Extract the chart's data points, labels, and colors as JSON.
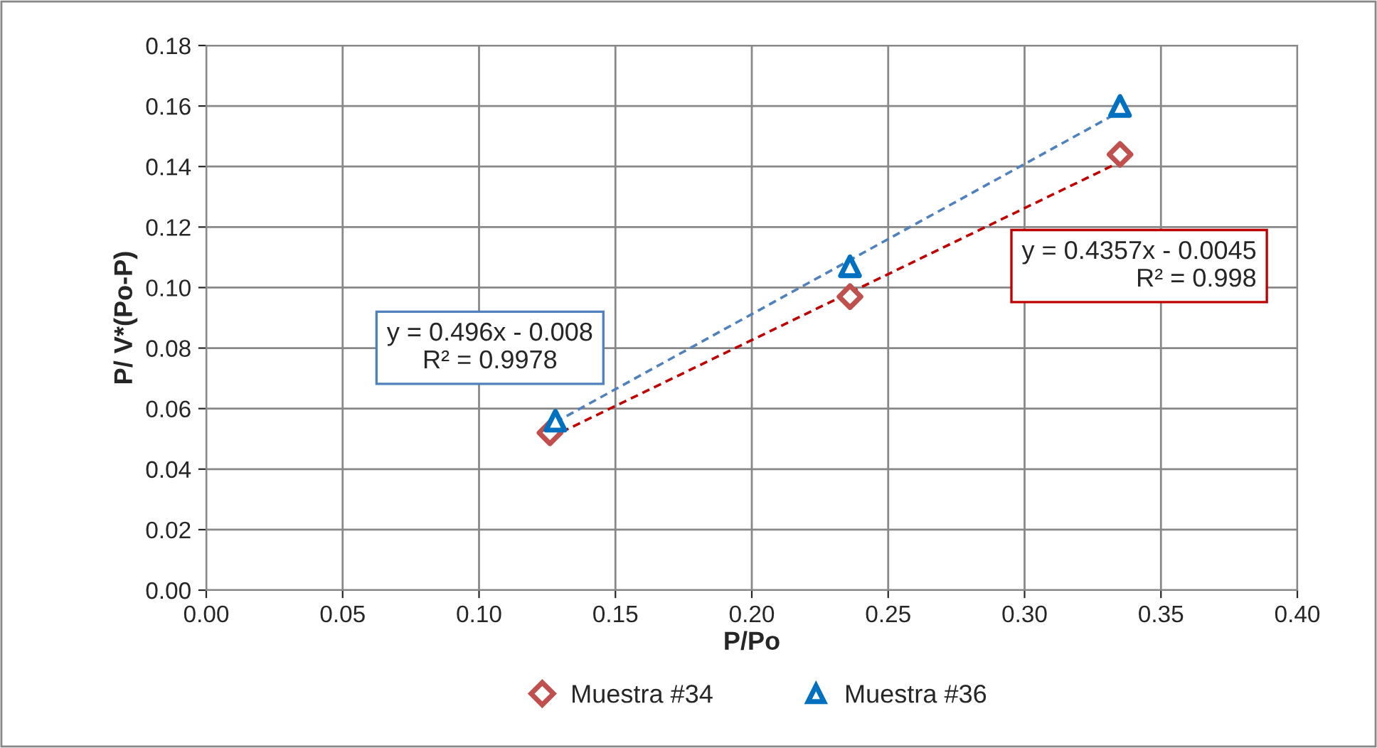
{
  "chart_data": {
    "type": "scatter",
    "xlabel": "P/Po",
    "ylabel": "P/ V*(Po-P)",
    "xlim": [
      0,
      0.4
    ],
    "xticks": [
      {
        "value": 0,
        "label": "0.00"
      },
      {
        "value": 0.05,
        "label": "0.05"
      },
      {
        "value": 0.1,
        "label": "0.10"
      },
      {
        "value": 0.15,
        "label": "0.15"
      },
      {
        "value": 0.2,
        "label": "0.20"
      },
      {
        "value": 0.25,
        "label": "0.25"
      },
      {
        "value": 0.3,
        "label": "0.30"
      },
      {
        "value": 0.35,
        "label": "0.35"
      },
      {
        "value": 0.4,
        "label": "0.40"
      }
    ],
    "ylim": [
      0,
      0.18
    ],
    "yticks": [
      {
        "value": 0,
        "label": "0.00"
      },
      {
        "value": 0.02,
        "label": "0.02"
      },
      {
        "value": 0.04,
        "label": "0.04"
      },
      {
        "value": 0.06,
        "label": "0.06"
      },
      {
        "value": 0.08,
        "label": "0.08"
      },
      {
        "value": 0.1,
        "label": "0.10"
      },
      {
        "value": 0.12,
        "label": "0.12"
      },
      {
        "value": 0.14,
        "label": "0.14"
      },
      {
        "value": 0.16,
        "label": "0.16"
      },
      {
        "value": 0.18,
        "label": "0.18"
      }
    ],
    "grid": true,
    "legend": "bottom",
    "series": [
      {
        "name": "Muestra #34",
        "marker": "diamond",
        "color": "#c0504d",
        "x": [
          0.126,
          0.236,
          0.335
        ],
        "values": [
          0.052,
          0.097,
          0.144
        ]
      },
      {
        "name": "Muestra #36",
        "marker": "triangle",
        "color": "#0070c0",
        "x": [
          0.128,
          0.236,
          0.335
        ],
        "values": [
          0.056,
          0.107,
          0.16
        ]
      },
      {
        "type": "line",
        "line_style": "dashed",
        "color": "#4f81bd",
        "x": [
          0.128,
          0.335
        ],
        "values": [
          0.0555,
          0.1582
        ]
      },
      {
        "type": "line",
        "line_style": "dashed",
        "color": "#c00000",
        "x": [
          0.126,
          0.335
        ],
        "values": [
          0.0504,
          0.1415
        ]
      }
    ],
    "annotations": [
      "y = 0.496x - 0.008\nR² = 0.9978",
      "y = 0.4357x - 0.0045\nR² = 0.998"
    ]
  }
}
